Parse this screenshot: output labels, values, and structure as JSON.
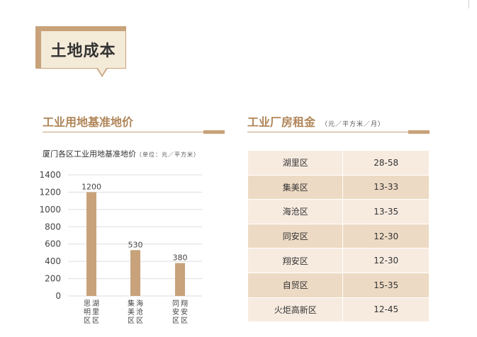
{
  "page": {
    "title": "土地成本"
  },
  "left_section": {
    "heading": "工业用地基准地价"
  },
  "right_section": {
    "heading": "工业厂房租金",
    "unit": "（元／平方米／月）"
  },
  "chart_data": {
    "type": "bar",
    "title": "厦门各区工业用地基准地价",
    "title_unit": "（单位：元／平方米）",
    "categories": [
      [
        "思明区",
        "湖里区"
      ],
      [
        "集美区",
        "海沧区"
      ],
      [
        "同安区",
        "翔安区"
      ]
    ],
    "values": [
      1200,
      530,
      380
    ],
    "ylim": [
      0,
      1400
    ],
    "yticks": [
      0,
      200,
      400,
      600,
      800,
      1000,
      1200,
      1400
    ],
    "grid": true,
    "color": "#c8a27a"
  },
  "rent_table": {
    "rows": [
      {
        "district": "湖里区",
        "rent": "28-58"
      },
      {
        "district": "集美区",
        "rent": "13-33"
      },
      {
        "district": "海沧区",
        "rent": "13-35"
      },
      {
        "district": "同安区",
        "rent": "12-30"
      },
      {
        "district": "翔安区",
        "rent": "12-30"
      },
      {
        "district": "自贸区",
        "rent": "15-35"
      },
      {
        "district": "火炬高新区",
        "rent": "12-45"
      }
    ]
  },
  "colors": {
    "accent": "#c8a27a",
    "heading": "#b08558",
    "badge_fill": "#f4ead8",
    "row_light": "#f7ebe0",
    "row_dark": "#eddac4"
  }
}
